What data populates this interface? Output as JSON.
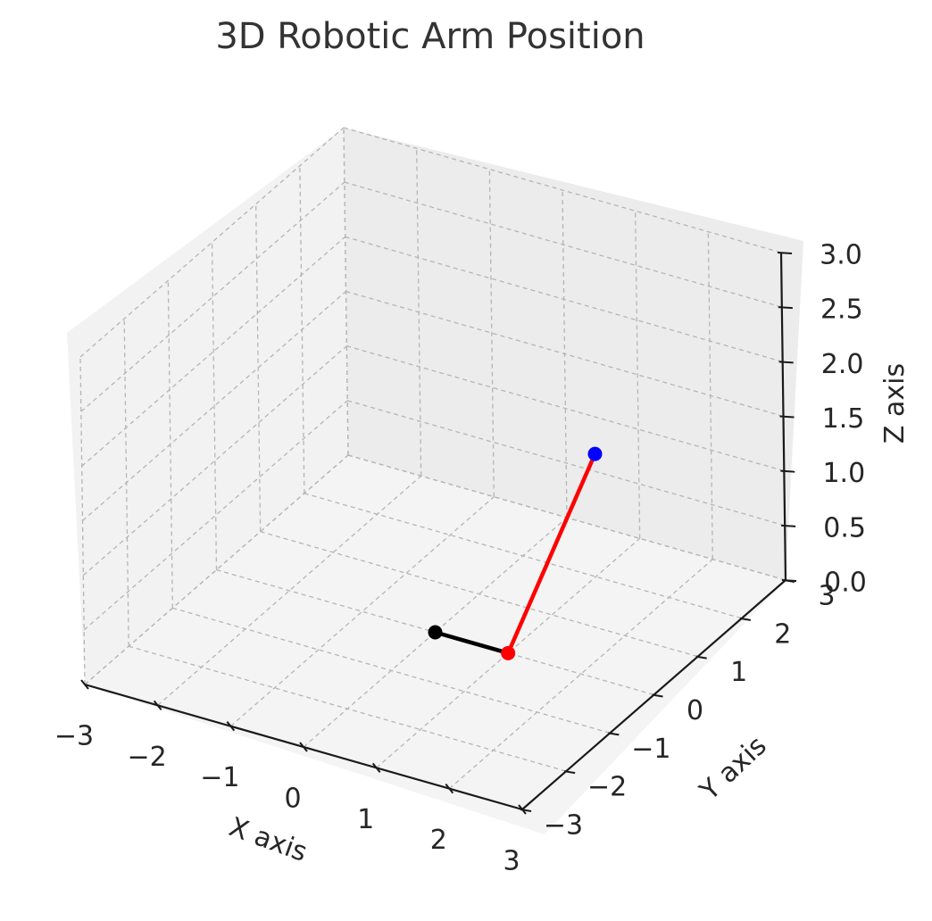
{
  "chart_data": {
    "type": "3d-line",
    "title": "3D Robotic Arm Position",
    "xlabel": "X axis",
    "ylabel": "Y axis",
    "zlabel": "Z axis",
    "xlim": [
      -3,
      3
    ],
    "ylim": [
      -3,
      3
    ],
    "zlim": [
      0,
      3
    ],
    "x_ticks": [
      "−3",
      "−2",
      "−1",
      "0",
      "1",
      "2",
      "3"
    ],
    "y_ticks": [
      "−3",
      "−2",
      "−1",
      "0",
      "1",
      "2",
      "3"
    ],
    "z_ticks": [
      "0.0",
      "0.5",
      "1.0",
      "1.5",
      "2.0",
      "2.5",
      "3.0"
    ],
    "grid": true,
    "segments": [
      {
        "from": [
          0,
          0,
          0
        ],
        "to": [
          1,
          0,
          0
        ],
        "color": "#000000"
      },
      {
        "from": [
          1,
          0,
          0
        ],
        "to": [
          1.5,
          1.2,
          1.5
        ],
        "color": "#ff0000"
      }
    ],
    "joints": [
      {
        "point": [
          0,
          0,
          0
        ],
        "color": "#000000"
      },
      {
        "point": [
          1,
          0,
          0
        ],
        "color": "#ff0000"
      },
      {
        "point": [
          1.5,
          1.2,
          1.5
        ],
        "color": "#0000ff"
      }
    ]
  }
}
